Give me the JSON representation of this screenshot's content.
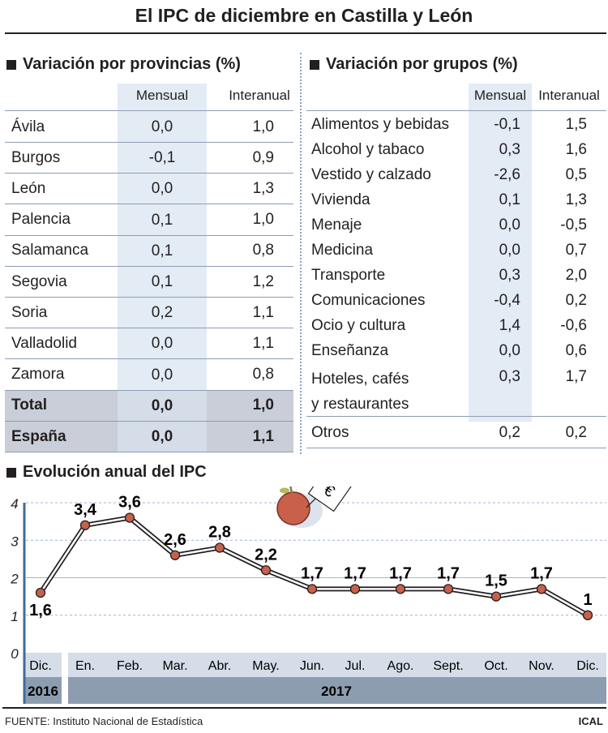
{
  "title": "El IPC de diciembre en Castilla y León",
  "provincias": {
    "heading": "Variación por provincias (%)",
    "col_mensual": "Mensual",
    "col_interanual": "Interanual",
    "rows": [
      {
        "name": "Ávila",
        "m": "0,0",
        "i": "1,0"
      },
      {
        "name": "Burgos",
        "m": "-0,1",
        "i": "0,9"
      },
      {
        "name": "León",
        "m": "0,0",
        "i": "1,3"
      },
      {
        "name": "Palencia",
        "m": "0,1",
        "i": "1,0"
      },
      {
        "name": "Salamanca",
        "m": "0,1",
        "i": "0,8"
      },
      {
        "name": "Segovia",
        "m": "0,1",
        "i": "1,2"
      },
      {
        "name": "Soria",
        "m": "0,2",
        "i": "1,1"
      },
      {
        "name": "Valladolid",
        "m": "0,0",
        "i": "1,1"
      },
      {
        "name": "Zamora",
        "m": "0,0",
        "i": "0,8"
      },
      {
        "name": "Total",
        "m": "0,0",
        "i": "1,0"
      },
      {
        "name": "España",
        "m": "0,0",
        "i": "1,1"
      }
    ]
  },
  "grupos": {
    "heading": "Variación por grupos (%)",
    "col_mensual": "Mensual",
    "col_interanual": "Interanual",
    "rows": [
      {
        "name": "Alimentos y bebidas",
        "m": "-0,1",
        "i": "1,5"
      },
      {
        "name": "Alcohol y tabaco",
        "m": "0,3",
        "i": "1,6"
      },
      {
        "name": "Vestido y calzado",
        "m": "-2,6",
        "i": "0,5"
      },
      {
        "name": "Vivienda",
        "m": "0,1",
        "i": "1,3"
      },
      {
        "name": "Menaje",
        "m": "0,0",
        "i": "-0,5"
      },
      {
        "name": "Medicina",
        "m": "0,0",
        "i": "0,7"
      },
      {
        "name": "Transporte",
        "m": "0,3",
        "i": "2,0"
      },
      {
        "name": "Comunicaciones",
        "m": "-0,4",
        "i": "0,2"
      },
      {
        "name": "Ocio y cultura",
        "m": "1,4",
        "i": "-0,6"
      },
      {
        "name": "Enseñanza",
        "m": "0,0",
        "i": "0,6"
      },
      {
        "name": "Hoteles, cafés",
        "name2": "y restaurantes",
        "m": "0,3",
        "i": "1,7"
      },
      {
        "name": "Otros",
        "m": "0,2",
        "i": "0,2"
      }
    ]
  },
  "chart_data": {
    "type": "line",
    "title": "Evolución anual del IPC",
    "categories": [
      "Dic.",
      "En.",
      "Feb.",
      "Mar.",
      "Abr.",
      "May.",
      "Jun.",
      "Jul.",
      "Ago.",
      "Sept.",
      "Oct.",
      "Nov.",
      "Dic."
    ],
    "values": [
      1.6,
      3.4,
      3.6,
      2.6,
      2.8,
      2.2,
      1.7,
      1.7,
      1.7,
      1.7,
      1.5,
      1.7,
      1
    ],
    "labels": [
      "1,6",
      "3,4",
      "3,6",
      "2,6",
      "2,8",
      "2,2",
      "1,7",
      "1,7",
      "1,7",
      "1,7",
      "1,5",
      "1,7",
      "1"
    ],
    "years": [
      "2016",
      "2017"
    ],
    "yticks": [
      "0",
      "1",
      "2",
      "3",
      "4"
    ],
    "ylim": [
      0,
      4
    ],
    "grid": true,
    "colors": {
      "marker": "#c8604a",
      "line": "#231f20",
      "axis": "#3f6c9a"
    }
  },
  "footer": {
    "source": "FUENTE: Instituto Nacional de Estadística",
    "brand": "ICAL"
  }
}
